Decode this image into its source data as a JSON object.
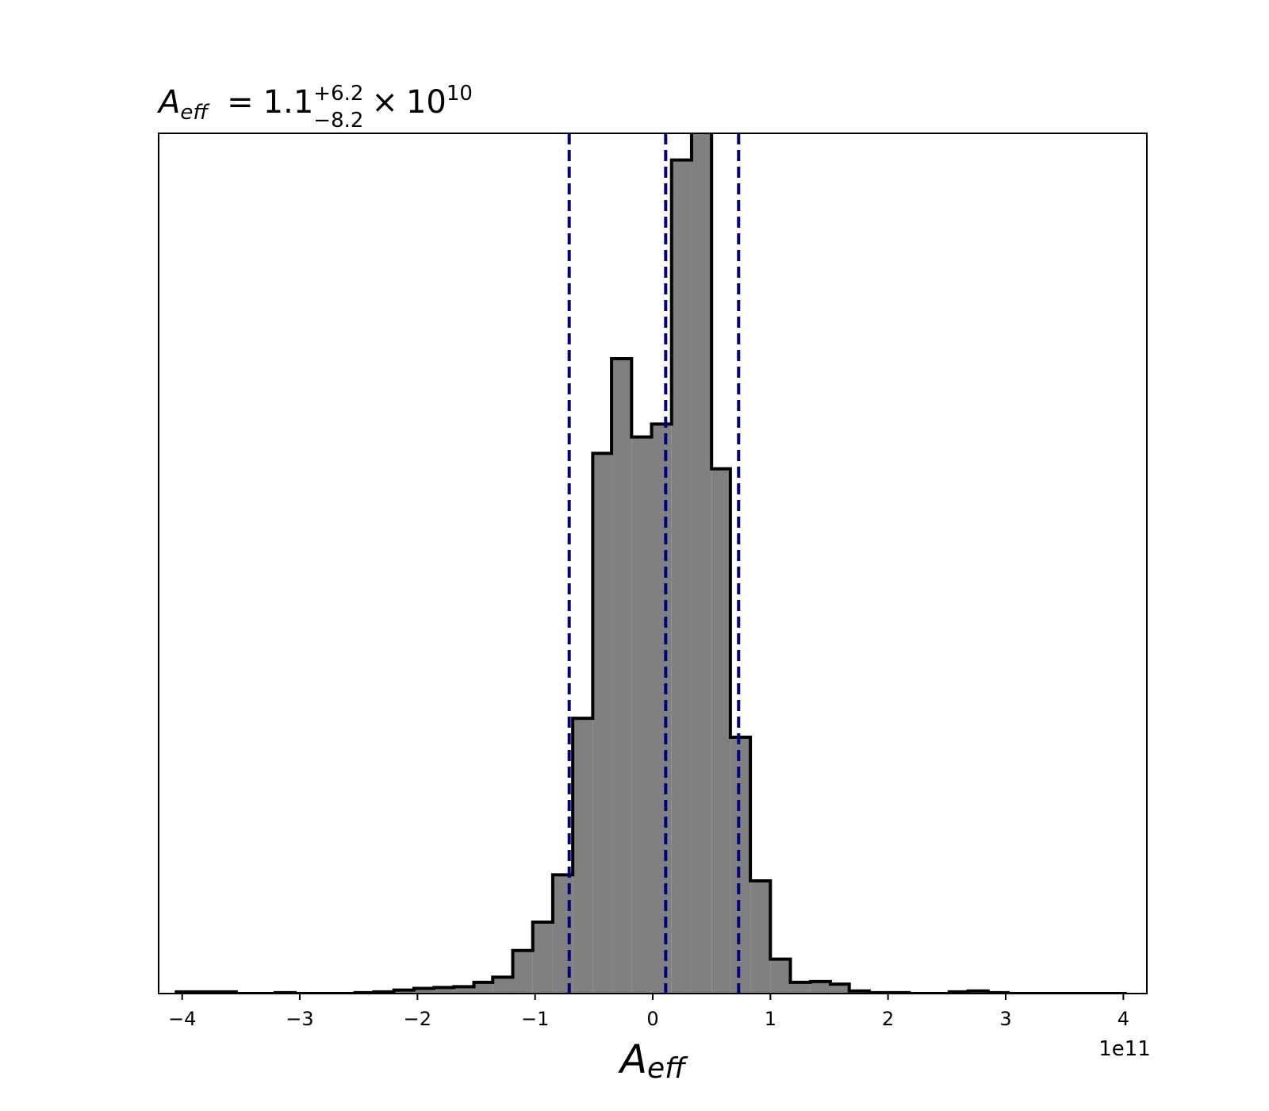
{
  "chart_data": {
    "type": "bar",
    "title": {
      "symbol": "A",
      "subscript": "eff",
      "equals": "=",
      "mantissa": "1.1",
      "upper": "+6.2",
      "lower": "−8.2",
      "times": "×",
      "base": "10",
      "exponent": "10"
    },
    "xlabel": {
      "symbol": "A",
      "subscript": "eff"
    },
    "offset_text": "1e11",
    "xlim": [
      -4.2,
      4.2
    ],
    "ylim": [
      0,
      1.0
    ],
    "xticks": [
      -4,
      -3,
      -2,
      -1,
      0,
      1,
      2,
      3,
      4
    ],
    "xtick_labels": [
      "−4",
      "−3",
      "−2",
      "−1",
      "0",
      "1",
      "2",
      "3",
      "4"
    ],
    "bin_edges": [
      -4.05,
      -3.88,
      -3.71,
      -3.54,
      -3.37,
      -3.21,
      -3.04,
      -2.87,
      -2.7,
      -2.53,
      -2.37,
      -2.2,
      -2.03,
      -1.86,
      -1.69,
      -1.52,
      -1.36,
      -1.19,
      -1.02,
      -0.85,
      -0.68,
      -0.51,
      -0.35,
      -0.18,
      -0.01,
      0.16,
      0.33,
      0.5,
      0.66,
      0.83,
      1.0,
      1.17,
      1.34,
      1.51,
      1.67,
      1.84,
      2.01,
      2.18,
      2.35,
      2.52,
      2.68,
      2.85,
      3.02,
      3.19,
      3.36,
      3.53,
      3.69,
      3.86,
      4.03
    ],
    "counts": [
      0.002,
      0.002,
      0.002,
      0.0,
      0.0,
      0.001,
      0.0,
      0.0,
      0.0,
      0.001,
      0.002,
      0.004,
      0.006,
      0.007,
      0.008,
      0.013,
      0.019,
      0.05,
      0.083,
      0.138,
      0.32,
      0.628,
      0.738,
      0.647,
      0.662,
      0.969,
      1.02,
      0.61,
      0.298,
      0.131,
      0.04,
      0.013,
      0.014,
      0.011,
      0.003,
      0.001,
      0.001,
      0.0,
      0.0,
      0.002,
      0.003,
      0.001,
      0.0,
      0.0,
      0.0,
      0.0,
      0.0,
      0.0
    ],
    "quantile_lines": [
      -0.71,
      0.11,
      0.73
    ],
    "colors": {
      "fill": "#808080",
      "edge": "#000000",
      "quantile": "#000080"
    },
    "grid": false
  }
}
